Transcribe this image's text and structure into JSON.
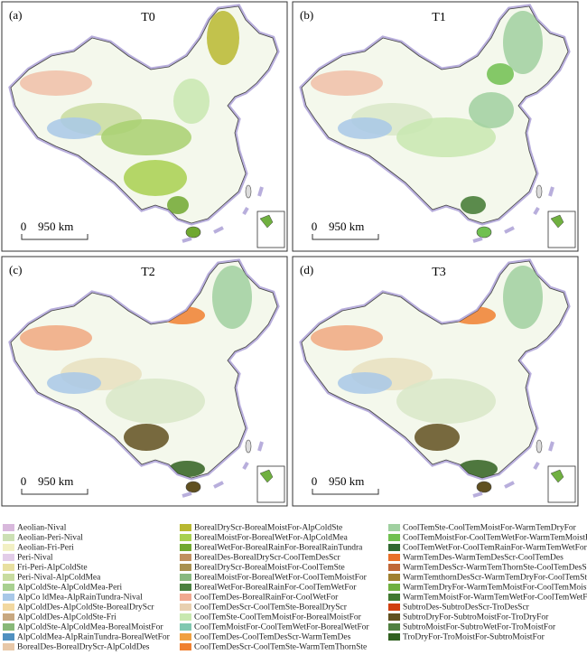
{
  "panels": [
    {
      "label": "(a)",
      "title": "T0",
      "scale_start": "0",
      "scale_text": "950 km"
    },
    {
      "label": "(b)",
      "title": "T1",
      "scale_start": "0",
      "scale_text": "950 km"
    },
    {
      "label": "(c)",
      "title": "T2",
      "scale_start": "0",
      "scale_text": "950 km"
    },
    {
      "label": "(d)",
      "title": "T3",
      "scale_start": "0",
      "scale_text": "950 km"
    }
  ],
  "legend": [
    {
      "name": "Aeolian-Nival",
      "color": "#d8b8dc"
    },
    {
      "name": "Aeolian-Peri-Nival",
      "color": "#cce0b4"
    },
    {
      "name": "Aeolian-Fri-Peri",
      "color": "#f2f0c4"
    },
    {
      "name": "Peri-Nival",
      "color": "#e2cce8"
    },
    {
      "name": "Fri-Peri-AlpColdSte",
      "color": "#e8e0a0"
    },
    {
      "name": "Peri-Nival-AlpColdMea",
      "color": "#c8dca0"
    },
    {
      "name": "AlpColdSte-AlpColdMea-Peri",
      "color": "#a8d090"
    },
    {
      "name": "AlpCo ldMea-AlpRainTundra-Nival",
      "color": "#a8c8e8"
    },
    {
      "name": "AlpColdDes-AlpColdSte-BorealDryScr",
      "color": "#f2d8a0"
    },
    {
      "name": "AlpColdDes-AlpColdSte-Fri",
      "color": "#c8a880"
    },
    {
      "name": "AlpColdSte-AlpColdMea-BorealMoistFor",
      "color": "#88b878"
    },
    {
      "name": "AlpColdMea-AlpRainTundra-BorealWetFor",
      "color": "#5090c0"
    },
    {
      "name": "BorealDes-BorealDryScr-AlpColdDes",
      "color": "#e8c8a8"
    },
    {
      "name": "BorealDryScr-BorealMoistFor-AlpColdSte",
      "color": "#b8b830"
    },
    {
      "name": "BorealMoistFor-BorealWetFor-AlpColdMea",
      "color": "#a8d050"
    },
    {
      "name": "BorealWetFor-BorealRainFor-BorealRainTundra",
      "color": "#70a830"
    },
    {
      "name": "BorealDes-BorealDryScr-CoolTemDesScr",
      "color": "#c09060"
    },
    {
      "name": "BorealDryScr-BorealMoistFor-CoolTemSte",
      "color": "#a89050"
    },
    {
      "name": "BorealMoistFor-BorealWetFor-CoolTemMoistFor",
      "color": "#88b880"
    },
    {
      "name": "BorealWetFor-BorealRainFor-CoolTemWetFor",
      "color": "#4a8040"
    },
    {
      "name": "CoolTemDes-BorealRainFor-CoolWetFor",
      "color": "#f0a890"
    },
    {
      "name": "CoolTemDesScr-CoolTemSte-BorealDryScr",
      "color": "#e8d0b0"
    },
    {
      "name": "CoolTemSte-CoolTemMoistFor-BorealMoistFor",
      "color": "#c8e8b0"
    },
    {
      "name": "CoolTemMoistFor-CoolTemWetFor-BorealWetFor",
      "color": "#80c8b0"
    },
    {
      "name": "CoolTemDes-CoolTemDesScr-WarmTemDes",
      "color": "#f0a040"
    },
    {
      "name": "CoolTemDesScr-CoolTemSte-WarmTemThornSte",
      "color": "#f08030"
    },
    {
      "name": "CoolTemSte-CoolTemMoistFor-WarmTemDryFor",
      "color": "#a0d0a0"
    },
    {
      "name": "CoolTemMoistFor-CoolTemWetFor-WarmTemMoistFor",
      "color": "#70c050"
    },
    {
      "name": "CoolTemWetFor-CoolTemRainFor-WarmTemWetFor",
      "color": "#306830"
    },
    {
      "name": "WarmTemDes-WarmTemDesScr-CoolTemDes",
      "color": "#e87028"
    },
    {
      "name": "WarmTemDesScr-WarmTemThornSte-CoolTemDesScr",
      "color": "#c06838"
    },
    {
      "name": "WarmTemthornDesScr-WarmTemDryFor-CoolTemSte",
      "color": "#a08030"
    },
    {
      "name": "WarmTemDryFor-WarmTemMoistFor-CoolTemMoistFor",
      "color": "#70b040"
    },
    {
      "name": "WarmTemMoistFor-WarmTemWetFor-CoolTemWetFor",
      "color": "#407830"
    },
    {
      "name": "SubtroDes-SubtroDesScr-TroDesScr",
      "color": "#d04010"
    },
    {
      "name": "SubtroDryFor-SubtroMoistFor-TroDryFor",
      "color": "#605020"
    },
    {
      "name": "SubtroMoistFor-SubtroWetFor-TroMoistFor",
      "color": "#508040"
    },
    {
      "name": "TroDryFor-TroMoistFor-SubtroMoistFor",
      "color": "#306020"
    }
  ]
}
